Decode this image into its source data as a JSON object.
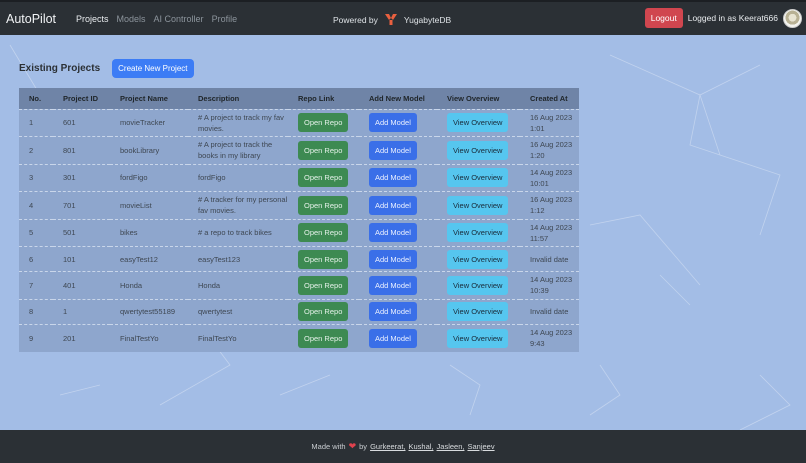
{
  "navbar": {
    "brand": "AutoPilot",
    "links": [
      {
        "label": "Projects",
        "active": true
      },
      {
        "label": "Models",
        "active": false
      },
      {
        "label": "AI Controller",
        "active": false
      },
      {
        "label": "Profile",
        "active": false
      }
    ],
    "powered_by": "Powered by",
    "powered_brand": "YugabyteDB",
    "logout_label": "Logout",
    "logged_in_text": "Logged in as Keerat666"
  },
  "main": {
    "title": "Existing Projects",
    "create_button": "Create New Project",
    "table": {
      "headers": [
        "No.",
        "Project ID",
        "Project Name",
        "Description",
        "Repo Link",
        "Add New Model",
        "View Overview",
        "Created At"
      ],
      "rows": [
        {
          "no": "1",
          "id": "601",
          "name": "movieTracker",
          "desc": "# A project to track my fav movies.",
          "repo": "Open Repo",
          "model": "Add Model",
          "view": "View Overview",
          "created": "16 Aug 2023 1:01"
        },
        {
          "no": "2",
          "id": "801",
          "name": "bookLibrary",
          "desc": "# A project to track the books in my library",
          "repo": "Open Repo",
          "model": "Add Model",
          "view": "View Overview",
          "created": "16 Aug 2023 1:20"
        },
        {
          "no": "3",
          "id": "301",
          "name": "fordFigo",
          "desc": "fordFigo",
          "repo": "Open Repo",
          "model": "Add Model",
          "view": "View Overview",
          "created": "14 Aug 2023 10:01"
        },
        {
          "no": "4",
          "id": "701",
          "name": "movieList",
          "desc": "# A tracker for my personal fav movies.",
          "repo": "Open Repo",
          "model": "Add Model",
          "view": "View Overview",
          "created": "16 Aug 2023 1:12"
        },
        {
          "no": "5",
          "id": "501",
          "name": "bikes",
          "desc": "# a repo to track bikes",
          "repo": "Open Repo",
          "model": "Add Model",
          "view": "View Overview",
          "created": "14 Aug 2023 11:57"
        },
        {
          "no": "6",
          "id": "101",
          "name": "easyTest12",
          "desc": "easyTest123",
          "repo": "Open Repo",
          "model": "Add Model",
          "view": "View Overview",
          "created": "Invalid date"
        },
        {
          "no": "7",
          "id": "401",
          "name": "Honda",
          "desc": "Honda",
          "repo": "Open Repo",
          "model": "Add Model",
          "view": "View Overview",
          "created": "14 Aug 2023 10:39"
        },
        {
          "no": "8",
          "id": "1",
          "name": "qwertytest55189",
          "desc": "qwertytest",
          "repo": "Open Repo",
          "model": "Add Model",
          "view": "View Overview",
          "created": "Invalid date"
        },
        {
          "no": "9",
          "id": "201",
          "name": "FinalTestYo",
          "desc": "FinalTestYo",
          "repo": "Open Repo",
          "model": "Add Model",
          "view": "View Overview",
          "created": "14 Aug 2023 9:43"
        }
      ]
    }
  },
  "footer": {
    "made_with": "Made with",
    "by": "by",
    "authors": [
      "Gurkeerat,",
      "Kushal,",
      "Jasleen,",
      "Sanjeev"
    ]
  },
  "colors": {
    "navbar_bg": "#2b3035",
    "page_bg": "#a3bde6",
    "logout": "#d0464f",
    "primary": "#3c7cf5",
    "success": "#3d8a52",
    "info": "#56c6ef"
  }
}
